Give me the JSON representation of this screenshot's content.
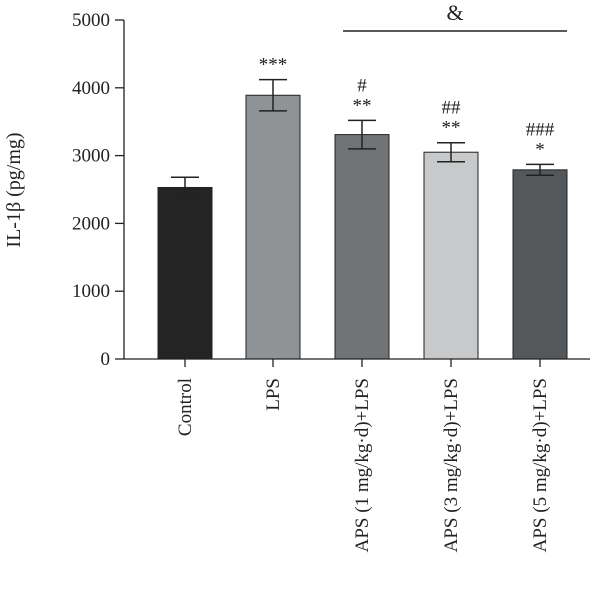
{
  "chart_data": {
    "type": "bar",
    "ylabel": "IL-1β (pg/mg)",
    "ylim": [
      0,
      5000
    ],
    "yticks": [
      "0",
      "1000",
      "2000",
      "3000",
      "4000",
      "5000"
    ],
    "categories": [
      "Control",
      "LPS",
      "APS (1 mg/kg·d)+LPS",
      "APS (3 mg/kg·d)+LPS",
      "APS (5 mg/kg·d)+LPS"
    ],
    "values": [
      2530,
      3890,
      3310,
      3050,
      2790
    ],
    "errors": [
      150,
      230,
      210,
      140,
      80
    ],
    "colors": [
      "#242424",
      "#8f9396",
      "#717476",
      "#c7c9ca",
      "#55585b"
    ],
    "significance": [
      {
        "top": "",
        "bottom": ""
      },
      {
        "top": "",
        "bottom": "***"
      },
      {
        "top": "#",
        "bottom": "**"
      },
      {
        "top": "##",
        "bottom": "**"
      },
      {
        "top": "###",
        "bottom": "*"
      }
    ],
    "bracket_label": "&",
    "grid": false,
    "legend": "none"
  }
}
